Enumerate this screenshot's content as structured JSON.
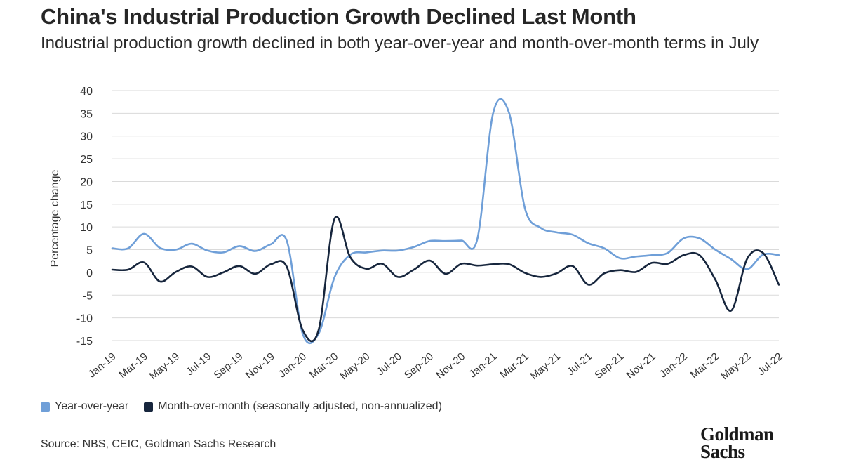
{
  "header": {
    "title": "China's Industrial Production Growth Declined Last Month",
    "subtitle": "Industrial production growth declined in both year-over-year and month-over-month terms in July"
  },
  "footer": {
    "source": "Source: NBS, CEIC, Goldman Sachs Research",
    "logo_line1": "Goldman",
    "logo_line2": "Sachs"
  },
  "colors": {
    "yoy": "#6f9fd8",
    "mom": "#17263d",
    "grid": "#dadada",
    "axis_text": "#333333"
  },
  "chart_data": {
    "type": "line",
    "title": "China's Industrial Production Growth Declined Last Month",
    "xlabel": "",
    "ylabel": "Percentage change",
    "ylim": [
      -15,
      40
    ],
    "yticks": [
      -15,
      -10,
      -5,
      0,
      5,
      10,
      15,
      20,
      25,
      30,
      35,
      40
    ],
    "grid": true,
    "legend_position": "bottom-left",
    "x": [
      "Jan-19",
      "Feb-19",
      "Mar-19",
      "Apr-19",
      "May-19",
      "Jun-19",
      "Jul-19",
      "Aug-19",
      "Sep-19",
      "Oct-19",
      "Nov-19",
      "Dec-19",
      "Jan-20",
      "Feb-20",
      "Mar-20",
      "Apr-20",
      "May-20",
      "Jun-20",
      "Jul-20",
      "Aug-20",
      "Sep-20",
      "Oct-20",
      "Nov-20",
      "Dec-20",
      "Jan-21",
      "Feb-21",
      "Mar-21",
      "Apr-21",
      "May-21",
      "Jun-21",
      "Jul-21",
      "Aug-21",
      "Sep-21",
      "Oct-21",
      "Nov-21",
      "Dec-21",
      "Jan-22",
      "Feb-22",
      "Mar-22",
      "Apr-22",
      "May-22",
      "Jun-22",
      "Jul-22"
    ],
    "xtick_labels": [
      "Jan-19",
      "Mar-19",
      "May-19",
      "Jul-19",
      "Sep-19",
      "Nov-19",
      "Jan-20",
      "Mar-20",
      "May-20",
      "Jul-20",
      "Sep-20",
      "Nov-20",
      "Jan-21",
      "Mar-21",
      "May-21",
      "Jul-21",
      "Sep-21",
      "Nov-21",
      "Jan-22",
      "Mar-22",
      "May-22",
      "Jul-22"
    ],
    "series": [
      {
        "name": "Year-over-year",
        "color": "#6f9fd8",
        "values": [
          5.3,
          5.3,
          8.5,
          5.4,
          5.0,
          6.3,
          4.8,
          4.4,
          5.8,
          4.7,
          6.2,
          6.9,
          -13.5,
          -13.5,
          -1.1,
          3.9,
          4.4,
          4.8,
          4.8,
          5.6,
          6.9,
          6.9,
          7.0,
          7.3,
          35.1,
          35.1,
          14.1,
          9.8,
          8.8,
          8.3,
          6.4,
          5.3,
          3.1,
          3.5,
          3.8,
          4.3,
          7.5,
          7.5,
          5.0,
          2.9,
          0.7,
          3.9,
          3.8
        ]
      },
      {
        "name": "Month-over-month (seasonally adjusted, non-annualized)",
        "color": "#17263d",
        "values": [
          0.6,
          0.6,
          2.2,
          -2.0,
          0.1,
          1.3,
          -1.0,
          0.0,
          1.4,
          -0.3,
          1.8,
          1.2,
          -12.7,
          -12.7,
          11.8,
          3.3,
          0.8,
          1.9,
          -1.0,
          0.6,
          2.6,
          -0.3,
          1.9,
          1.5,
          1.8,
          1.8,
          -0.1,
          -1.0,
          -0.2,
          1.4,
          -2.7,
          -0.2,
          0.5,
          0.1,
          2.1,
          1.9,
          3.8,
          3.8,
          -1.6,
          -8.4,
          3.0,
          4.3,
          -2.7
        ]
      }
    ]
  }
}
